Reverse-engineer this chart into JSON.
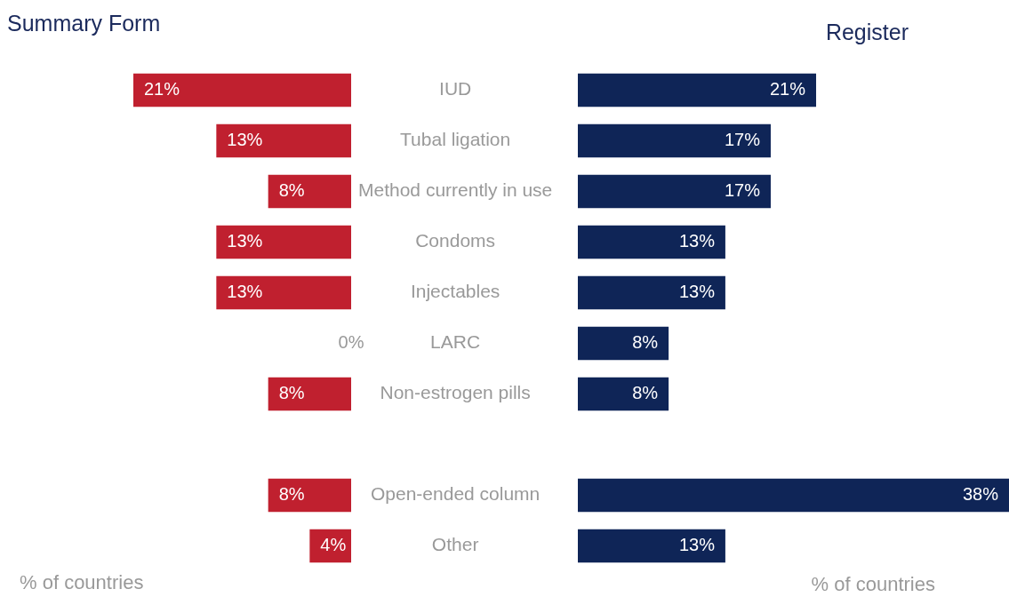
{
  "chart_data": [
    {
      "type": "bar",
      "orientation": "horizontal",
      "title": "Summary Form",
      "xlabel": "% of countries",
      "categories": [
        "IUD",
        "Tubal ligation",
        "Method currently in use",
        "Condoms",
        "Injectables",
        "LARC",
        "Non-estrogen pills",
        null,
        "Open-ended column",
        "Other"
      ],
      "values": [
        21,
        13,
        8,
        13,
        13,
        0,
        8,
        null,
        8,
        4
      ],
      "value_labels": [
        "21%",
        "13%",
        "8%",
        "13%",
        "13%",
        "0%",
        "8%",
        null,
        "8%",
        "4%"
      ],
      "color": "#c0202f",
      "tick_labels": "y"
    },
    {
      "type": "bar",
      "orientation": "horizontal",
      "title": "Register",
      "xlabel": "% of countries",
      "categories": [
        null,
        null,
        null,
        null,
        null,
        null,
        null,
        null,
        null,
        null
      ],
      "values": [
        21,
        17,
        17,
        13,
        13,
        8,
        8,
        null,
        38,
        13
      ],
      "value_labels": [
        "21%",
        "17%",
        "17%",
        "13%",
        "13%",
        "8%",
        "8%",
        null,
        "38%",
        "13%"
      ],
      "color": "#0f2557",
      "tick_labels": false
    }
  ]
}
